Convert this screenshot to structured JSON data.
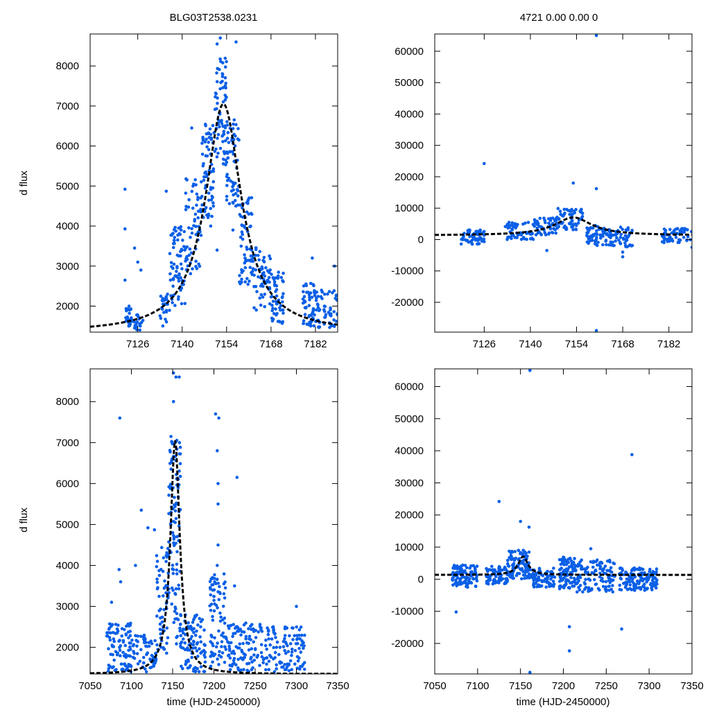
{
  "figure": {
    "title_left": "BLG03T2538.0231",
    "title_right": "4721  0.00  0.00  0",
    "ylabel": "d flux",
    "xlabel": "time (HJD-2450000)"
  },
  "colors": {
    "points": "#0a5fe6",
    "model": "#000000",
    "frame": "#000000"
  },
  "chart_data": [
    {
      "id": "top-left",
      "type": "scatter",
      "title": "BLG03T2538.0231",
      "xlabel": "",
      "ylabel": "d flux",
      "xlim": [
        7111,
        7189
      ],
      "ylim": [
        1350,
        8800
      ],
      "xticks": [
        7126,
        7140,
        7154,
        7168,
        7182
      ],
      "yticks": [
        2000,
        3000,
        4000,
        5000,
        6000,
        7000,
        8000
      ],
      "model": {
        "t0": 7153.0,
        "tE": 6.5,
        "base": 1350,
        "amp": 5700
      },
      "clusters": [
        [
          7122,
          7124,
          1450,
          2000,
          25
        ],
        [
          7124,
          7128,
          1400,
          1800,
          20
        ],
        [
          7133,
          7136,
          1500,
          2300,
          25
        ],
        [
          7136,
          7141,
          2000,
          4000,
          70
        ],
        [
          7141,
          7146,
          2800,
          5200,
          60
        ],
        [
          7146,
          7150,
          4200,
          6600,
          70
        ],
        [
          7150,
          7154,
          5500,
          8200,
          70
        ],
        [
          7154,
          7158,
          4500,
          6800,
          60
        ],
        [
          7158,
          7162,
          2500,
          4800,
          60
        ],
        [
          7162,
          7168,
          1900,
          3500,
          60
        ],
        [
          7168,
          7172,
          1500,
          2900,
          50
        ],
        [
          7178,
          7182,
          1500,
          2600,
          50
        ],
        [
          7182,
          7189,
          1450,
          2400,
          60
        ]
      ],
      "outliers": [
        [
          7122,
          4920
        ],
        [
          7122,
          3930
        ],
        [
          7135,
          4870
        ],
        [
          7143,
          6450
        ],
        [
          7125,
          3450
        ],
        [
          7126,
          3100
        ],
        [
          7127,
          2900
        ],
        [
          7122,
          2650
        ],
        [
          7149,
          4000
        ],
        [
          7152,
          8700
        ],
        [
          7151,
          8550
        ],
        [
          7157,
          8600
        ],
        [
          7156,
          3900
        ],
        [
          7181,
          3200
        ],
        [
          7188,
          3000
        ],
        [
          7151,
          3400
        ]
      ]
    },
    {
      "id": "top-right",
      "type": "scatter",
      "title": "4721  0.00  0.00  0",
      "xlabel": "",
      "ylabel": "",
      "xlim": [
        7111,
        7189
      ],
      "ylim": [
        -29500,
        65500
      ],
      "xticks": [
        7126,
        7140,
        7154,
        7168,
        7182
      ],
      "yticks": [
        -20000,
        -10000,
        0,
        10000,
        20000,
        30000,
        40000,
        50000,
        60000
      ],
      "model": {
        "t0": 7153.0,
        "tE": 6.5,
        "base": 1350,
        "amp": 5700
      },
      "clusters": [
        [
          7119,
          7126,
          -1500,
          3500,
          60
        ],
        [
          7132,
          7141,
          0,
          5500,
          60
        ],
        [
          7141,
          7148,
          1500,
          7000,
          50
        ],
        [
          7148,
          7156,
          3000,
          10000,
          60
        ],
        [
          7157,
          7163,
          -2000,
          4500,
          60
        ],
        [
          7163,
          7171,
          -2500,
          4000,
          60
        ],
        [
          7180,
          7189,
          -1000,
          3500,
          60
        ]
      ],
      "outliers": [
        [
          7126,
          24200
        ],
        [
          7160,
          16200
        ],
        [
          7153,
          18000
        ],
        [
          7160,
          65000
        ],
        [
          7160,
          -29000
        ],
        [
          7145,
          -3500
        ],
        [
          7168,
          -5500
        ],
        [
          7168,
          -4000
        ],
        [
          7189,
          -2500
        ]
      ]
    },
    {
      "id": "bottom-left",
      "type": "scatter",
      "title": "",
      "xlabel": "time (HJD-2450000)",
      "ylabel": "d flux",
      "xlim": [
        7050,
        7350
      ],
      "ylim": [
        1350,
        8800
      ],
      "xticks": [
        7050,
        7100,
        7150,
        7200,
        7250,
        7300,
        7350
      ],
      "yticks": [
        2000,
        3000,
        4000,
        5000,
        6000,
        7000,
        8000
      ],
      "model": {
        "t0": 7153.0,
        "tE": 6.5,
        "base": 1350,
        "amp": 5700
      },
      "clusters": [
        [
          7070,
          7100,
          1400,
          2600,
          90
        ],
        [
          7100,
          7130,
          1400,
          2300,
          60
        ],
        [
          7130,
          7145,
          1700,
          4500,
          60
        ],
        [
          7145,
          7160,
          2000,
          7200,
          110
        ],
        [
          7160,
          7190,
          1400,
          2800,
          90
        ],
        [
          7195,
          7215,
          1500,
          3800,
          80
        ],
        [
          7215,
          7260,
          1400,
          2600,
          110
        ],
        [
          7260,
          7310,
          1400,
          2500,
          110
        ]
      ],
      "outliers": [
        [
          7086,
          7600
        ],
        [
          7112,
          5350
        ],
        [
          7120,
          4920
        ],
        [
          7128,
          4870
        ],
        [
          7085,
          3900
        ],
        [
          7087,
          3600
        ],
        [
          7105,
          4000
        ],
        [
          7151,
          8700
        ],
        [
          7154,
          8600
        ],
        [
          7158,
          8600
        ],
        [
          7151,
          8000
        ],
        [
          7202,
          7700
        ],
        [
          7206,
          7600
        ],
        [
          7204,
          6800
        ],
        [
          7228,
          6150
        ],
        [
          7205,
          6000
        ],
        [
          7205,
          5500
        ],
        [
          7205,
          4500
        ],
        [
          7204,
          4000
        ],
        [
          7225,
          3500
        ],
        [
          7300,
          3000
        ],
        [
          7272,
          2500
        ],
        [
          7076,
          3100
        ]
      ]
    },
    {
      "id": "bottom-right",
      "type": "scatter",
      "title": "",
      "xlabel": "time (HJD-2450000)",
      "ylabel": "",
      "xlim": [
        7050,
        7350
      ],
      "ylim": [
        -29500,
        65500
      ],
      "xticks": [
        7050,
        7100,
        7150,
        7200,
        7250,
        7300,
        7350
      ],
      "yticks": [
        -20000,
        -10000,
        0,
        10000,
        20000,
        30000,
        40000,
        50000,
        60000
      ],
      "model": {
        "t0": 7153.0,
        "tE": 6.5,
        "base": 1350,
        "amp": 5700
      },
      "clusters": [
        [
          7070,
          7100,
          -2500,
          4500,
          110
        ],
        [
          7110,
          7135,
          -1500,
          4000,
          80
        ],
        [
          7135,
          7160,
          0,
          9000,
          100
        ],
        [
          7160,
          7190,
          -2500,
          3500,
          80
        ],
        [
          7195,
          7215,
          -3000,
          7000,
          100
        ],
        [
          7215,
          7260,
          -4000,
          6000,
          120
        ],
        [
          7265,
          7310,
          -3500,
          3500,
          130
        ]
      ],
      "outliers": [
        [
          7125,
          24200
        ],
        [
          7160,
          16200
        ],
        [
          7280,
          38800
        ],
        [
          7161,
          65000
        ],
        [
          7161,
          -29000
        ],
        [
          7207,
          -14800
        ],
        [
          7207,
          -22300
        ],
        [
          7268,
          -15500
        ],
        [
          7075,
          -10200
        ],
        [
          7150,
          18000
        ],
        [
          7232,
          9500
        ]
      ]
    }
  ]
}
